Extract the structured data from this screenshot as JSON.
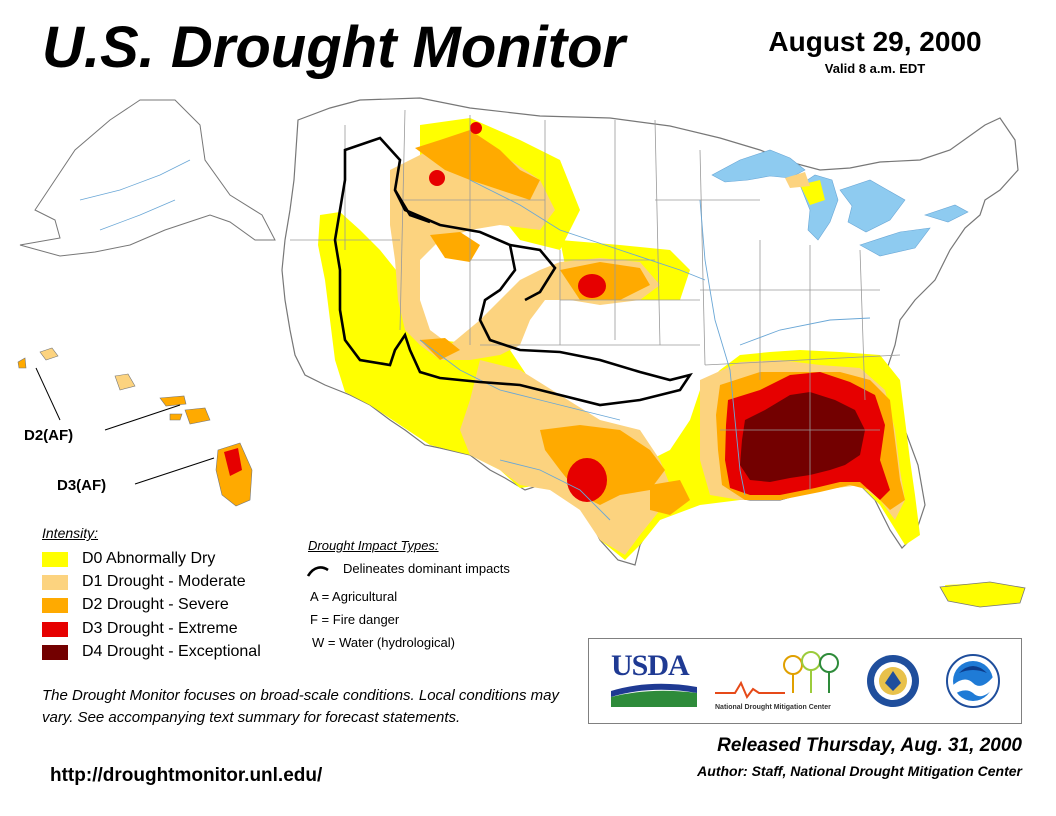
{
  "header": {
    "title": "U.S. Drought Monitor",
    "date": "August 29, 2000",
    "valid": "Valid 8 a.m. EDT"
  },
  "map": {
    "callouts": {
      "hawaii_d2": "D2(AF)",
      "hawaii_d3": "D3(AF)"
    },
    "colors": {
      "land": "#ffffff",
      "borders": "#9a9a9a",
      "water": "#8ecbf0",
      "D0": "#ffff00",
      "D1": "#fcd37f",
      "D2": "#ffaa00",
      "D3": "#e60000",
      "D4": "#730000"
    }
  },
  "legend": {
    "heading": "Intensity:",
    "items": [
      {
        "code": "D0",
        "label": "D0 Abnormally Dry",
        "color": "#ffff00"
      },
      {
        "code": "D1",
        "label": "D1 Drought - Moderate",
        "color": "#fcd37f"
      },
      {
        "code": "D2",
        "label": "D2 Drought - Severe",
        "color": "#ffaa00"
      },
      {
        "code": "D3",
        "label": "D3 Drought - Extreme",
        "color": "#e60000"
      },
      {
        "code": "D4",
        "label": "D4 Drought - Exceptional",
        "color": "#730000"
      }
    ]
  },
  "impacts": {
    "heading": "Drought Impact Types:",
    "delineates": "Delineates dominant impacts",
    "types": [
      "A = Agricultural",
      "F = Fire danger",
      "W = Water (hydrological)"
    ]
  },
  "note": "The Drought Monitor focuses on broad-scale conditions. Local conditions may vary. See accompanying text summary for forecast statements.",
  "url": "http://droughtmonitor.unl.edu/",
  "logos": {
    "usda": "USDA",
    "ndmc": "National Drought Mitigation Center"
  },
  "footer": {
    "released": "Released Thursday, Aug. 31, 2000",
    "author": "Author: Staff, National Drought Mitigation Center"
  }
}
